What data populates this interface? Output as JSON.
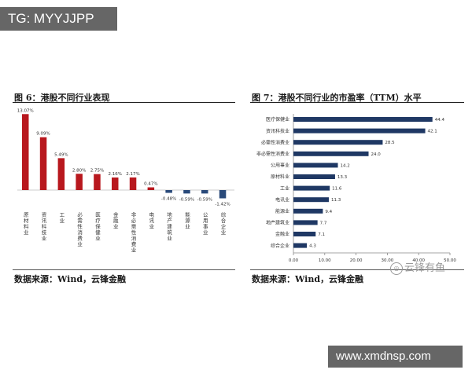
{
  "overlay": {
    "tg_label": "TG: MYYJJPP",
    "site_label": "www.xmdnsp.com",
    "watermark_text": "云锋有鱼"
  },
  "chart_data": [
    {
      "type": "bar",
      "title": "图 6：港股不同行业表现",
      "source": "数据来源：Wind，云锋金融",
      "categories": [
        "原材料业",
        "资讯科技业",
        "工业",
        "必需性消费业",
        "医疗保健业",
        "金融业",
        "非必需性消费业",
        "电讯业",
        "地产建筑业",
        "能源业",
        "公用事业",
        "综合企业"
      ],
      "values": [
        13.07,
        9.09,
        5.49,
        2.8,
        2.75,
        2.16,
        2.17,
        0.47,
        -0.48,
        -0.59,
        -0.59,
        -1.42
      ],
      "value_labels": [
        "13.07%",
        "9.09%",
        "5.49%",
        "2.80%",
        "2.75%",
        "2.16%",
        "2.17%",
        "0.47%",
        "-0.48%",
        "-0.59%",
        "-0.59%",
        "-1.42%"
      ],
      "ylim": [
        -2,
        14
      ],
      "colors": {
        "positive": "#b8181e",
        "negative": "#2a4a7a"
      }
    },
    {
      "type": "bar",
      "orientation": "horizontal",
      "title": "图 7：港股不同行业的市盈率（TTM）水平",
      "source": "数据来源：Wind，云锋金融",
      "categories": [
        "医疗保健业",
        "资讯科技业",
        "必需性消费业",
        "非必需性消费业",
        "公用事业",
        "原材料业",
        "工业",
        "电讯业",
        "能源业",
        "地产建筑业",
        "金融业",
        "综合企业"
      ],
      "values": [
        44.4,
        42.1,
        28.5,
        24.0,
        14.2,
        13.3,
        11.6,
        11.3,
        9.4,
        7.7,
        7.1,
        4.3
      ],
      "value_labels": [
        "44.4",
        "42.1",
        "28.5",
        "24.0",
        "14.2",
        "13.3",
        "11.6",
        "11.3",
        "9.4",
        "7.7",
        "7.1",
        "4.3"
      ],
      "xlim": [
        0,
        50
      ],
      "xticks": [
        "0.00",
        "10.00",
        "20.00",
        "30.00",
        "40.00",
        "50.00"
      ],
      "colors": {
        "bar": "#1f3864"
      }
    }
  ]
}
